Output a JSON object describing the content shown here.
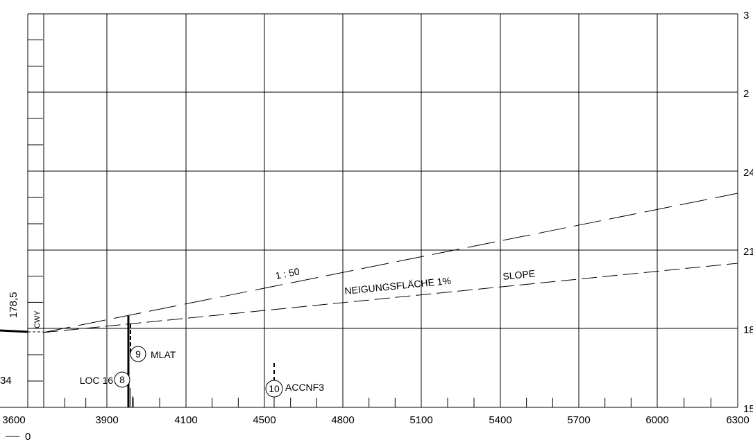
{
  "chart_data": {
    "type": "line",
    "x_tick_labels": [
      "3600",
      "3900",
      "4100",
      "4500",
      "4800",
      "5100",
      "5400",
      "5700",
      "6000",
      "6300"
    ],
    "right_axis_labels": [
      "3",
      "2",
      "24",
      "21",
      "18",
      "15"
    ],
    "bottom_left_label": "0",
    "left_labels": {
      "elevation": "178,5",
      "partial": "34"
    },
    "annotations": {
      "cwy": "CWY",
      "ratio": "1 : 50",
      "surface": "NEIGUNGSFLÄCHE 1%",
      "slope": "SLOPE",
      "loc": "LOC 16",
      "mlat": "MLAT",
      "accnf": "ACCNF3"
    },
    "markers": [
      {
        "number": "8",
        "label": "LOC 16"
      },
      {
        "number": "9",
        "label": "MLAT"
      },
      {
        "number": "10",
        "label": "ACCNF3"
      }
    ],
    "series": [
      {
        "name": "1 : 50",
        "style": "long-dash"
      },
      {
        "name": "NEIGUNGSFLÄCHE 1% SLOPE",
        "style": "dash"
      }
    ],
    "grid": true,
    "colors": {
      "line": "#000000",
      "background": "#ffffff"
    }
  }
}
